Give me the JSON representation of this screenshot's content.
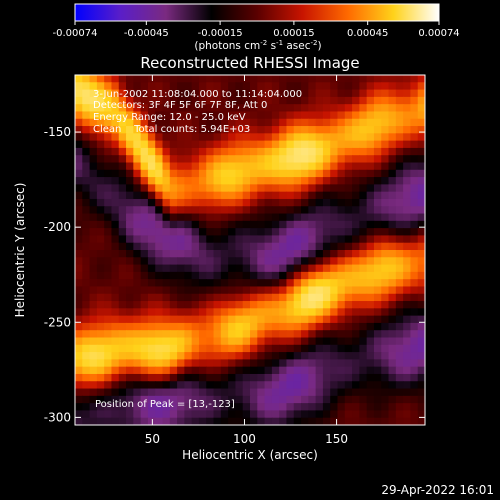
{
  "colorbar": {
    "tick_labels": [
      "-0.00074",
      "-0.00045",
      "-0.00015",
      "0.00015",
      "0.00045",
      "0.00074"
    ],
    "tick_values": [
      -0.00074,
      -0.00045,
      -0.00015,
      0.00015,
      0.00045,
      0.00074
    ],
    "min": -0.00074,
    "max": 0.00074,
    "units_prefix": "(photons cm",
    "units_exp1": "-2",
    "units_mid1": " s",
    "units_exp2": "-1",
    "units_mid2": " asec",
    "units_exp3": "-2",
    "units_suffix": ")",
    "stops": [
      "#0000ff",
      "#5a1ec8",
      "#7a2a80",
      "#000000",
      "#5a0000",
      "#c81400",
      "#ff6a00",
      "#ffd21a",
      "#ffffff"
    ]
  },
  "chart_data": {
    "type": "heatmap",
    "title": "Reconstructed RHESSI Image",
    "xlabel": "Heliocentric X (arcsec)",
    "ylabel": "Heliocentric Y (arcsec)",
    "xlim": [
      8,
      198
    ],
    "ylim": [
      -304,
      -120
    ],
    "x_ticks": [
      50,
      100,
      150
    ],
    "y_ticks": [
      -150,
      -200,
      -250,
      -300
    ],
    "x_tick_labels": [
      "50",
      "100",
      "150"
    ],
    "y_tick_labels": [
      "-150",
      "-200",
      "-250",
      "-300"
    ],
    "annotations": [
      "3-Jun-2002 11:08:04.000 to 11:14:04.000",
      "Detectors: 3F 4F 5F 6F 7F 8F, Att 0",
      "Energy Range: 12.0 - 25.0 keV",
      "Clean    Total counts: 5.94E+03",
      "Position of Peak = [13,-123]"
    ],
    "peak": [
      13,
      -123
    ],
    "intensity_range": [
      -0.00074,
      0.00074
    ],
    "bright_ridges": [
      {
        "x": [
          8,
          30,
          60,
          100,
          140,
          175,
          198
        ],
        "y": [
          -128,
          -140,
          -182,
          -170,
          -160,
          -145,
          -138
        ]
      },
      {
        "x": [
          8,
          30,
          60,
          100,
          140,
          175,
          198
        ],
        "y": [
          -270,
          -265,
          -265,
          -252,
          -235,
          -222,
          -218
        ]
      }
    ],
    "dark_troughs": [
      {
        "x": [
          8,
          40,
          80,
          120,
          160,
          198
        ],
        "y": [
          -165,
          -195,
          -215,
          -215,
          -195,
          -182
        ]
      },
      {
        "x": [
          8,
          40,
          80,
          120,
          160,
          198
        ],
        "y": [
          -300,
          -293,
          -290,
          -287,
          -270,
          -262
        ]
      }
    ]
  },
  "footer": {
    "timestamp": "29-Apr-2022 16:01"
  }
}
